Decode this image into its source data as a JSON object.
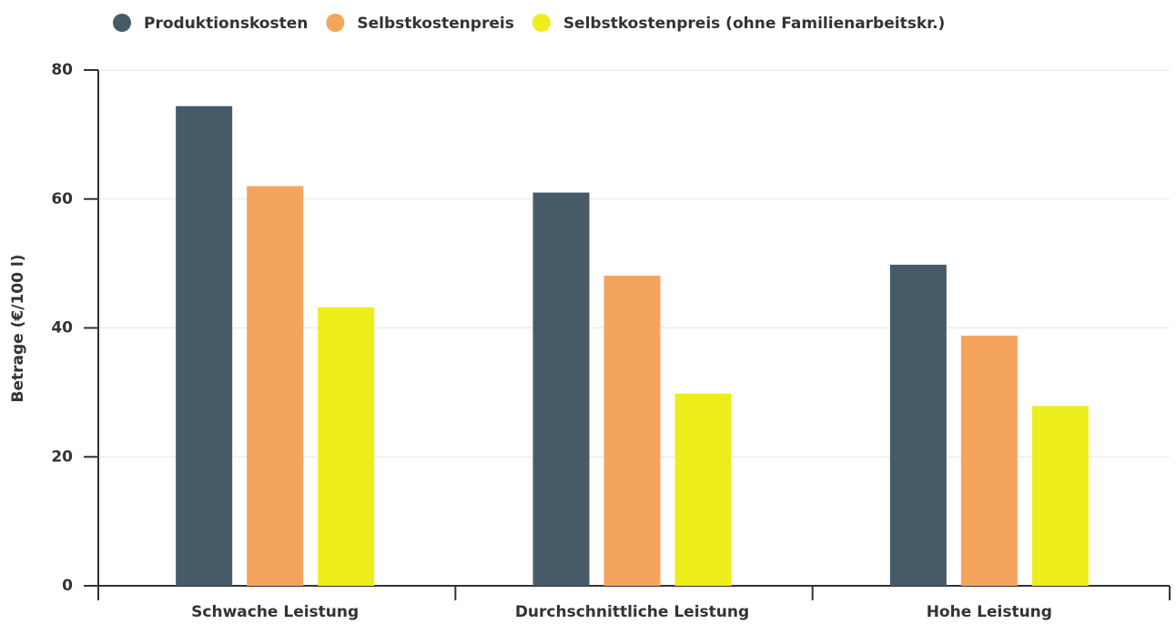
{
  "chart_data": {
    "type": "bar",
    "y_label": "Betrage (€/100 l)",
    "categories": [
      "Schwache Leistung",
      "Durchschnittliche Leistung",
      "Hohe Leistung"
    ],
    "series": [
      {
        "name": "Produktionskosten",
        "color": "#465a68",
        "values": [
          74.4,
          61,
          49.8
        ]
      },
      {
        "name": "Selbstkostenpreis",
        "color": "#f5a45d",
        "values": [
          62,
          48.1,
          38.8
        ]
      },
      {
        "name": "Selbstkostenpreis (ohne Familienarbeitskr.)",
        "color": "#eeee1c",
        "values": [
          43.2,
          29.8,
          27.9
        ]
      }
    ],
    "ylim": [
      0,
      80
    ],
    "yticks": [
      0,
      20,
      40,
      60,
      80
    ],
    "grid": true,
    "legend": "top"
  }
}
